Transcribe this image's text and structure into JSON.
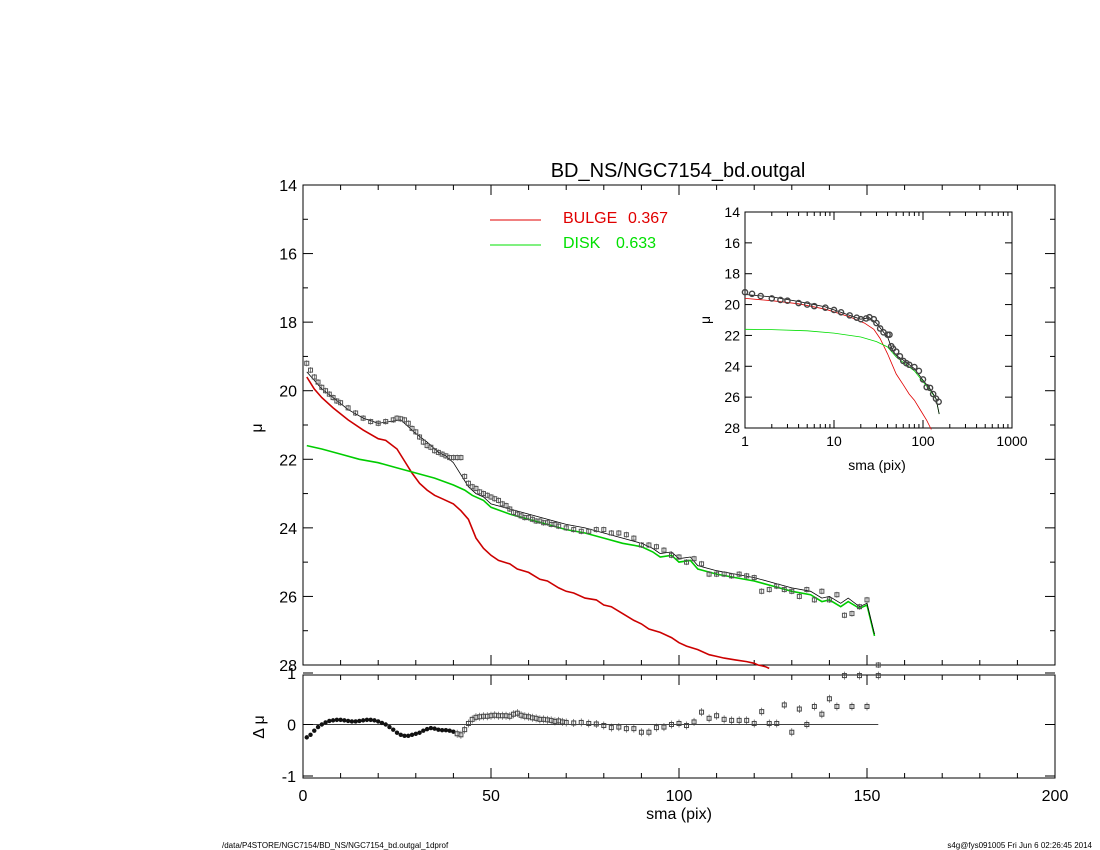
{
  "footer": {
    "left": "/data/P4STORE/NGC7154/BD_NS/NGC7154_bd.outgal_1dprof",
    "right": "s4g@fys091005  Fri Jun  6 02:26:45 2014"
  },
  "chart_data": [
    {
      "id": "main",
      "type": "line",
      "title": "BD_NS/NGC7154_bd.outgal",
      "xlabel": "",
      "ylabel": "μ",
      "xlim": [
        0,
        200
      ],
      "ylim": [
        28,
        14
      ],
      "yticks": [
        "14",
        "16",
        "18",
        "20",
        "22",
        "24",
        "26",
        "28"
      ],
      "legend": [
        {
          "label": "BULGE",
          "value": "0.367",
          "color": "#e00000"
        },
        {
          "label": "DISK",
          "value": "0.633",
          "color": "#00e000"
        }
      ],
      "series": [
        {
          "name": "BULGE",
          "color": "#cc0000",
          "x": [
            1,
            3,
            5,
            8,
            12,
            16,
            20,
            22,
            25,
            27,
            29,
            31,
            33,
            35,
            37,
            40,
            42,
            44,
            46,
            48,
            50,
            52,
            55,
            57,
            60,
            63,
            65,
            68,
            70,
            72,
            75,
            78,
            80,
            82,
            85,
            88,
            90,
            92,
            95,
            98,
            100,
            102,
            105,
            108,
            110,
            112,
            115,
            118,
            120,
            121,
            122,
            123,
            124
          ],
          "y": [
            19.6,
            19.95,
            20.2,
            20.5,
            20.85,
            21.15,
            21.4,
            21.45,
            21.7,
            22.05,
            22.4,
            22.7,
            22.9,
            23.05,
            23.15,
            23.3,
            23.5,
            23.75,
            24.3,
            24.6,
            24.8,
            24.95,
            25.05,
            25.2,
            25.3,
            25.5,
            25.55,
            25.75,
            25.85,
            25.9,
            26.05,
            26.1,
            26.25,
            26.3,
            26.5,
            26.7,
            26.8,
            26.95,
            27.05,
            27.2,
            27.35,
            27.45,
            27.55,
            27.7,
            27.75,
            27.8,
            27.85,
            27.9,
            27.95,
            28.0,
            28.02,
            28.05,
            28.1
          ]
        },
        {
          "name": "DISK",
          "color": "#00cc00",
          "x": [
            1,
            5,
            10,
            15,
            20,
            25,
            30,
            35,
            40,
            43,
            45,
            48,
            50,
            55,
            60,
            65,
            70,
            75,
            80,
            85,
            90,
            93,
            95,
            98,
            100,
            103,
            105,
            110,
            115,
            120,
            125,
            130,
            135,
            138,
            140,
            143,
            145,
            148,
            150,
            152
          ],
          "y": [
            21.6,
            21.7,
            21.85,
            22.0,
            22.1,
            22.25,
            22.4,
            22.55,
            22.75,
            22.9,
            23.05,
            23.2,
            23.4,
            23.6,
            23.75,
            23.9,
            24.05,
            24.15,
            24.3,
            24.45,
            24.55,
            24.7,
            24.85,
            24.8,
            25.0,
            24.95,
            25.2,
            25.35,
            25.45,
            25.55,
            25.7,
            25.85,
            25.95,
            26.15,
            26.1,
            26.3,
            26.15,
            26.35,
            26.25,
            27.15
          ]
        },
        {
          "name": "TOTAL",
          "color": "#000000",
          "x": [
            1,
            3,
            5,
            8,
            12,
            16,
            20,
            23,
            26,
            28,
            30,
            33,
            36,
            38,
            40,
            42,
            44,
            46,
            48,
            50,
            55,
            60,
            65,
            70,
            75,
            80,
            85,
            90,
            93,
            95,
            98,
            100,
            103,
            105,
            110,
            115,
            120,
            125,
            130,
            135,
            138,
            140,
            143,
            145,
            148,
            150,
            152
          ],
          "y": [
            19.45,
            19.7,
            19.95,
            20.2,
            20.55,
            20.8,
            20.95,
            20.9,
            20.85,
            21.05,
            21.25,
            21.5,
            21.8,
            21.9,
            22.1,
            22.45,
            22.8,
            23.0,
            23.1,
            23.3,
            23.45,
            23.6,
            23.75,
            23.9,
            24.0,
            24.15,
            24.3,
            24.45,
            24.6,
            24.75,
            24.7,
            24.9,
            24.85,
            25.1,
            25.25,
            25.35,
            25.45,
            25.6,
            25.75,
            25.85,
            26.05,
            26.0,
            26.2,
            26.05,
            26.3,
            26.2,
            27.1
          ]
        },
        {
          "name": "DATA",
          "color": "#555555",
          "x": [
            1,
            2,
            3,
            4,
            5,
            6,
            7,
            8,
            9,
            10,
            12,
            14,
            16,
            18,
            20,
            22,
            24,
            25,
            26,
            27,
            28,
            29,
            30,
            31,
            32,
            33,
            34,
            35,
            36,
            37,
            38,
            39,
            40,
            41,
            42,
            43,
            44,
            45,
            46,
            47,
            48,
            49,
            50,
            51,
            52,
            53,
            54,
            55,
            56,
            57,
            58,
            59,
            60,
            61,
            62,
            63,
            64,
            65,
            66,
            67,
            68,
            70,
            72,
            74,
            76,
            78,
            80,
            82,
            84,
            86,
            88,
            90,
            92,
            94,
            96,
            98,
            100,
            102,
            104,
            106,
            108,
            110,
            112,
            114,
            116,
            118,
            120,
            122,
            124,
            126,
            128,
            130,
            132,
            134,
            136,
            138,
            140,
            142,
            144,
            146,
            148,
            150,
            153
          ],
          "y": [
            19.2,
            19.4,
            19.6,
            19.75,
            19.9,
            20.0,
            20.1,
            20.2,
            20.3,
            20.35,
            20.5,
            20.65,
            20.8,
            20.9,
            20.95,
            20.9,
            20.85,
            20.8,
            20.82,
            20.85,
            20.95,
            21.1,
            21.2,
            21.35,
            21.5,
            21.6,
            21.65,
            21.75,
            21.8,
            21.85,
            21.9,
            21.95,
            21.95,
            21.95,
            21.95,
            22.5,
            22.7,
            22.8,
            22.85,
            22.95,
            23.0,
            23.05,
            23.1,
            23.15,
            23.2,
            23.3,
            23.35,
            23.45,
            23.55,
            23.6,
            23.65,
            23.7,
            23.7,
            23.75,
            23.8,
            23.8,
            23.85,
            23.85,
            23.9,
            23.9,
            23.95,
            24.0,
            24.05,
            24.1,
            24.1,
            24.05,
            24.05,
            24.15,
            24.15,
            24.2,
            24.3,
            24.5,
            24.5,
            24.55,
            24.65,
            24.8,
            24.85,
            25.0,
            24.9,
            25.05,
            25.35,
            25.35,
            25.35,
            25.4,
            25.35,
            25.4,
            25.45,
            25.85,
            25.8,
            25.7,
            25.8,
            25.85,
            26.0,
            25.8,
            26.1,
            25.85,
            26.1,
            25.95,
            26.55,
            26.5,
            26.3,
            26.1,
            28.0
          ]
        }
      ]
    },
    {
      "id": "residual",
      "type": "scatter",
      "xlabel": "sma (pix)",
      "ylabel": "Δ μ",
      "xlim": [
        0,
        200
      ],
      "ylim": [
        -1,
        1
      ],
      "xticks": [
        "0",
        "50",
        "100",
        "150",
        "200"
      ],
      "yticks": [
        "-1",
        "0",
        "1"
      ],
      "series": [
        {
          "name": "RESIDUAL",
          "x": [
            1,
            2,
            3,
            4,
            5,
            6,
            7,
            8,
            9,
            10,
            11,
            12,
            13,
            14,
            15,
            16,
            17,
            18,
            19,
            20,
            21,
            22,
            23,
            24,
            25,
            26,
            27,
            28,
            29,
            30,
            31,
            32,
            33,
            34,
            35,
            36,
            37,
            38,
            39,
            40,
            41,
            42,
            43,
            44,
            45,
            46,
            47,
            48,
            49,
            50,
            51,
            52,
            53,
            54,
            55,
            56,
            57,
            58,
            59,
            60,
            61,
            62,
            63,
            64,
            65,
            66,
            67,
            68,
            69,
            70,
            72,
            74,
            76,
            78,
            80,
            82,
            84,
            86,
            88,
            90,
            92,
            94,
            96,
            98,
            100,
            102,
            104,
            106,
            108,
            110,
            112,
            114,
            116,
            118,
            120,
            122,
            124,
            126,
            128,
            130,
            132,
            134,
            136,
            138,
            140,
            142,
            144,
            146,
            148,
            150,
            153
          ],
          "y": [
            -0.25,
            -0.2,
            -0.12,
            -0.05,
            0.0,
            0.04,
            0.07,
            0.08,
            0.09,
            0.09,
            0.08,
            0.07,
            0.06,
            0.06,
            0.07,
            0.08,
            0.09,
            0.09,
            0.08,
            0.06,
            0.03,
            0.0,
            -0.05,
            -0.1,
            -0.16,
            -0.2,
            -0.22,
            -0.22,
            -0.2,
            -0.18,
            -0.16,
            -0.12,
            -0.09,
            -0.07,
            -0.08,
            -0.1,
            -0.11,
            -0.11,
            -0.12,
            -0.14,
            -0.18,
            -0.2,
            -0.1,
            0.02,
            0.1,
            0.14,
            0.15,
            0.16,
            0.16,
            0.17,
            0.18,
            0.17,
            0.17,
            0.17,
            0.16,
            0.2,
            0.22,
            0.18,
            0.16,
            0.15,
            0.13,
            0.12,
            0.1,
            0.1,
            0.09,
            0.08,
            0.06,
            0.07,
            0.05,
            0.04,
            0.03,
            0.04,
            0.02,
            0.01,
            -0.02,
            -0.06,
            -0.05,
            -0.08,
            -0.08,
            -0.15,
            -0.15,
            -0.06,
            -0.05,
            0.0,
            0.02,
            -0.02,
            0.05,
            0.24,
            0.12,
            0.17,
            0.1,
            0.08,
            0.08,
            0.08,
            0.02,
            0.25,
            0.02,
            0.02,
            0.38,
            -0.15,
            0.3,
            0.0,
            0.35,
            0.2,
            0.5,
            0.35,
            0.95,
            0.35,
            0.95,
            0.35,
            0.95
          ]
        }
      ]
    },
    {
      "id": "inset",
      "type": "line",
      "xlabel": "sma (pix)",
      "ylabel": "μ",
      "xscale": "log",
      "xlim": [
        1,
        1000
      ],
      "ylim": [
        28,
        14
      ],
      "xticks": [
        "1",
        "10",
        "100",
        "1000"
      ],
      "yticks": [
        "14",
        "16",
        "18",
        "20",
        "22",
        "24",
        "26",
        "28"
      ],
      "series": [
        {
          "name": "BULGE",
          "color": "#e00000",
          "x": [
            1,
            2,
            4,
            8,
            15,
            22,
            28,
            33,
            40,
            50,
            60,
            70,
            80,
            95,
            110,
            124
          ],
          "y": [
            19.6,
            19.75,
            19.95,
            20.3,
            20.8,
            21.2,
            21.6,
            22.2,
            23.2,
            24.5,
            25.2,
            25.8,
            26.2,
            26.9,
            27.5,
            28.1
          ]
        },
        {
          "name": "DISK",
          "color": "#00dd00",
          "x": [
            1,
            2,
            5,
            10,
            20,
            30,
            40,
            50,
            60,
            80,
            100,
            120,
            140,
            152
          ],
          "y": [
            21.6,
            21.62,
            21.7,
            21.85,
            22.1,
            22.4,
            22.75,
            23.4,
            23.75,
            24.3,
            25.0,
            25.55,
            26.1,
            27.1
          ]
        },
        {
          "name": "TOTAL",
          "color": "#000000",
          "x": [
            1,
            2,
            4,
            8,
            15,
            20,
            25,
            30,
            35,
            40,
            45,
            50,
            60,
            80,
            100,
            120,
            140,
            152
          ],
          "y": [
            19.35,
            19.5,
            19.8,
            20.15,
            20.7,
            20.95,
            20.85,
            21.2,
            21.7,
            22.1,
            22.9,
            23.3,
            23.6,
            24.15,
            24.9,
            25.45,
            26.1,
            27.1
          ]
        },
        {
          "name": "DATA",
          "color": "#444444",
          "x": [
            1,
            1.2,
            1.5,
            2,
            2.5,
            3,
            4,
            5,
            6,
            8,
            10,
            12,
            15,
            18,
            20,
            23,
            25,
            28,
            30,
            33,
            36,
            40,
            42,
            44,
            46,
            50,
            55,
            60,
            65,
            70,
            80,
            90,
            100,
            110,
            120,
            130,
            140,
            150
          ],
          "y": [
            19.2,
            19.3,
            19.45,
            19.6,
            19.7,
            19.75,
            19.9,
            20.0,
            20.1,
            20.2,
            20.35,
            20.5,
            20.7,
            20.85,
            20.95,
            20.9,
            20.82,
            20.95,
            21.2,
            21.55,
            21.8,
            21.95,
            21.95,
            22.7,
            22.85,
            23.05,
            23.35,
            23.65,
            23.8,
            23.9,
            24.05,
            24.3,
            24.85,
            25.35,
            25.4,
            25.8,
            26.1,
            26.3
          ]
        }
      ]
    }
  ]
}
